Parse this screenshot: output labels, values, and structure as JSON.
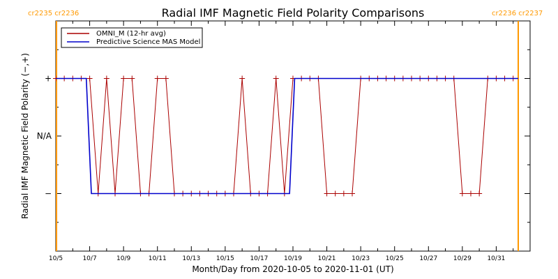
{
  "chart_data": {
    "type": "line",
    "title": "Radial IMF Magnetic Field Polarity Comparisons",
    "xlabel": "Month/Day from 2020-10-05 to 2020-11-01 (UT)",
    "ylabel": "Radial IMF Magnetic Field Polarity (−,+)",
    "x_tick_labels": [
      "10/5",
      "10/7",
      "10/9",
      "10/11",
      "10/13",
      "10/15",
      "10/17",
      "10/19",
      "10/21",
      "10/23",
      "10/25",
      "10/27",
      "10/29",
      "10/31"
    ],
    "x_ticks_days": [
      0,
      2,
      4,
      6,
      8,
      10,
      12,
      14,
      16,
      18,
      20,
      22,
      24,
      26
    ],
    "xlim_days": [
      0,
      28
    ],
    "y_tick_labels": [
      "−",
      "N/A",
      "+"
    ],
    "y_ticks": [
      -1,
      0,
      1
    ],
    "ylim": [
      -2,
      2
    ],
    "legend": {
      "placement": "top-left"
    },
    "carrington": {
      "left_label": "cr2235 cr2236",
      "right_label": "cr2236 cr2237",
      "left_day": 0,
      "right_day": 27.3,
      "color": "#ff9900"
    },
    "series": [
      {
        "name": "OMNI_M (12-hr avg)",
        "color": "#aa0000",
        "marker": "plus",
        "points": [
          [
            0,
            1
          ],
          [
            0.5,
            1
          ],
          [
            1,
            1
          ],
          [
            1.5,
            1
          ],
          [
            2,
            1
          ],
          [
            2.5,
            -1
          ],
          [
            3,
            1
          ],
          [
            3.5,
            -1
          ],
          [
            4,
            1
          ],
          [
            4.5,
            1
          ],
          [
            5,
            -1
          ],
          [
            5.5,
            -1
          ],
          [
            6,
            1
          ],
          [
            6.5,
            1
          ],
          [
            7,
            -1
          ],
          [
            7.5,
            -1
          ],
          [
            8,
            -1
          ],
          [
            8.5,
            -1
          ],
          [
            9,
            -1
          ],
          [
            9.5,
            -1
          ],
          [
            10,
            -1
          ],
          [
            10.5,
            -1
          ],
          [
            11,
            1
          ],
          [
            11.5,
            -1
          ],
          [
            12,
            -1
          ],
          [
            12.5,
            -1
          ],
          [
            13,
            1
          ],
          [
            13.5,
            -1
          ],
          [
            14,
            1
          ],
          [
            14.5,
            1
          ],
          [
            15,
            1
          ],
          [
            15.5,
            1
          ],
          [
            16,
            -1
          ],
          [
            16.5,
            -1
          ],
          [
            17,
            -1
          ],
          [
            17.5,
            -1
          ],
          [
            18,
            1
          ],
          [
            18.5,
            1
          ],
          [
            19,
            1
          ],
          [
            19.5,
            1
          ],
          [
            20,
            1
          ],
          [
            20.5,
            1
          ],
          [
            21,
            1
          ],
          [
            21.5,
            1
          ],
          [
            22,
            1
          ],
          [
            22.5,
            1
          ],
          [
            23,
            1
          ],
          [
            23.5,
            1
          ],
          [
            24,
            -1
          ],
          [
            24.5,
            -1
          ],
          [
            25,
            -1
          ],
          [
            25.5,
            1
          ],
          [
            26,
            1
          ],
          [
            26.5,
            1
          ],
          [
            27,
            1
          ]
        ]
      },
      {
        "name": "Predictive Science MAS Model",
        "color": "#0000cc",
        "marker": "none",
        "points": [
          [
            0,
            1
          ],
          [
            1.8,
            1
          ],
          [
            2.1,
            -1
          ],
          [
            13.8,
            -1
          ],
          [
            14.1,
            1
          ],
          [
            27.3,
            1
          ]
        ]
      }
    ]
  }
}
